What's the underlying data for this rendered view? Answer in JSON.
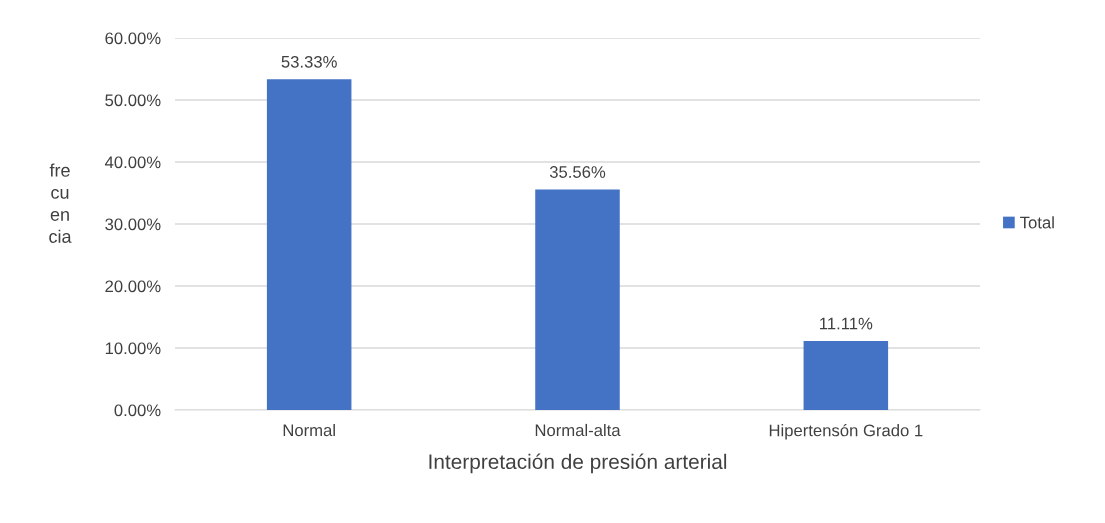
{
  "chart_data": {
    "type": "bar",
    "xlabel": "Interpretación de presión arterial",
    "ylabel": "fre\ncu\nen\ncia",
    "categories": [
      "Normal",
      "Normal-alta",
      "Hipertensón Grado 1"
    ],
    "series": [
      {
        "name": "Total",
        "color": "#4472c4",
        "values": [
          53.33,
          35.56,
          11.11
        ],
        "value_labels": [
          "53.33%",
          "35.56%",
          "11.11%"
        ]
      }
    ],
    "ylim": [
      0,
      60
    ],
    "yticks": [
      {
        "value": 0,
        "label": "0.00%"
      },
      {
        "value": 10,
        "label": "10.00%"
      },
      {
        "value": 20,
        "label": "20.00%"
      },
      {
        "value": 30,
        "label": "30.00%"
      },
      {
        "value": 40,
        "label": "40.00%"
      },
      {
        "value": 50,
        "label": "50.00%"
      },
      {
        "value": 60,
        "label": "60.00%"
      }
    ],
    "grid": "y",
    "legend": "right"
  }
}
